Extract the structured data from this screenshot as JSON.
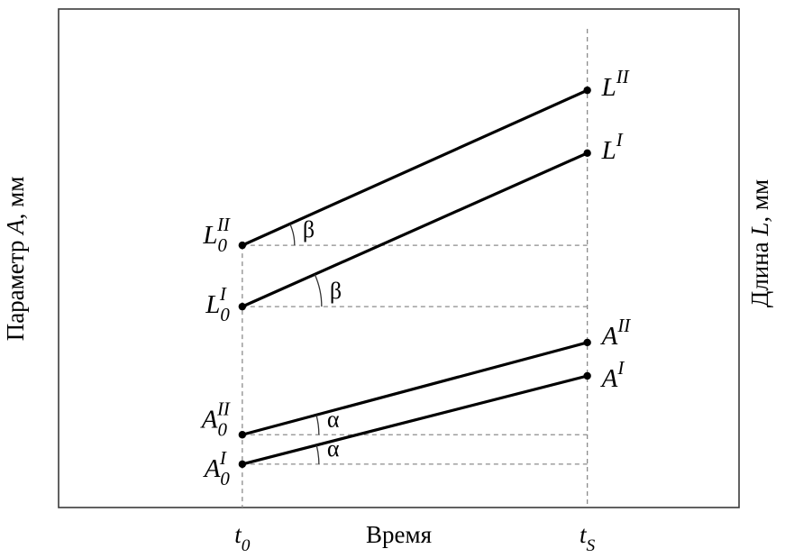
{
  "chart_data": {
    "type": "line",
    "title": "",
    "xlabel": "Время",
    "ylabel_left": {
      "prefix": "Параметр ",
      "variable": "A",
      "suffix": ", мм"
    },
    "ylabel_right": {
      "prefix": "Длина ",
      "variable": "L",
      "suffix": ", мм"
    },
    "x_ticks": [
      {
        "base": "t",
        "sub": "0",
        "xfrac": 0.27
      },
      {
        "base": "t",
        "sub": "S",
        "xfrac": 0.777
      }
    ],
    "x_t0_frac": 0.27,
    "x_ts_frac": 0.777,
    "series": [
      {
        "name": "L-II",
        "start_label": {
          "base": "L",
          "sub": "0",
          "sup": "II"
        },
        "end_label": {
          "base": "L",
          "sup": "II"
        },
        "y_start_frac": 0.526,
        "y_end_frac": 0.837,
        "angle_label": "β",
        "angle_radius": 58,
        "start_label_dy": -2,
        "end_label_dy": 6
      },
      {
        "name": "L-I",
        "start_label": {
          "base": "L",
          "sub": "0",
          "sup": "I"
        },
        "end_label": {
          "base": "L",
          "sup": "I"
        },
        "y_start_frac": 0.403,
        "y_end_frac": 0.711,
        "angle_label": "β",
        "angle_radius": 88,
        "start_label_dy": 7,
        "end_label_dy": 6
      },
      {
        "name": "A-II",
        "start_label": {
          "base": "A",
          "sub": "0",
          "sup": "II"
        },
        "end_label": {
          "base": "A",
          "sup": "II"
        },
        "y_start_frac": 0.146,
        "y_end_frac": 0.331,
        "angle_label": "α",
        "angle_radius": 85,
        "start_label_dy": -8,
        "end_label_dy": 2
      },
      {
        "name": "A-I",
        "start_label": {
          "base": "A",
          "sub": "0",
          "sup": "I"
        },
        "end_label": {
          "base": "A",
          "sup": "I"
        },
        "y_start_frac": 0.087,
        "y_end_frac": 0.264,
        "angle_label": "α",
        "angle_radius": 85,
        "start_label_dy": 14,
        "end_label_dy": 12
      }
    ],
    "legend": "none",
    "grid": "off",
    "guides": "dashed horizontal from each start point to tS; dashed vertical at t0 and tS",
    "colors": {
      "line": "#000000",
      "dashed": "#8c8c8c",
      "frame": "#3a3a3a",
      "arc": "#333333",
      "text": "#000000"
    }
  }
}
